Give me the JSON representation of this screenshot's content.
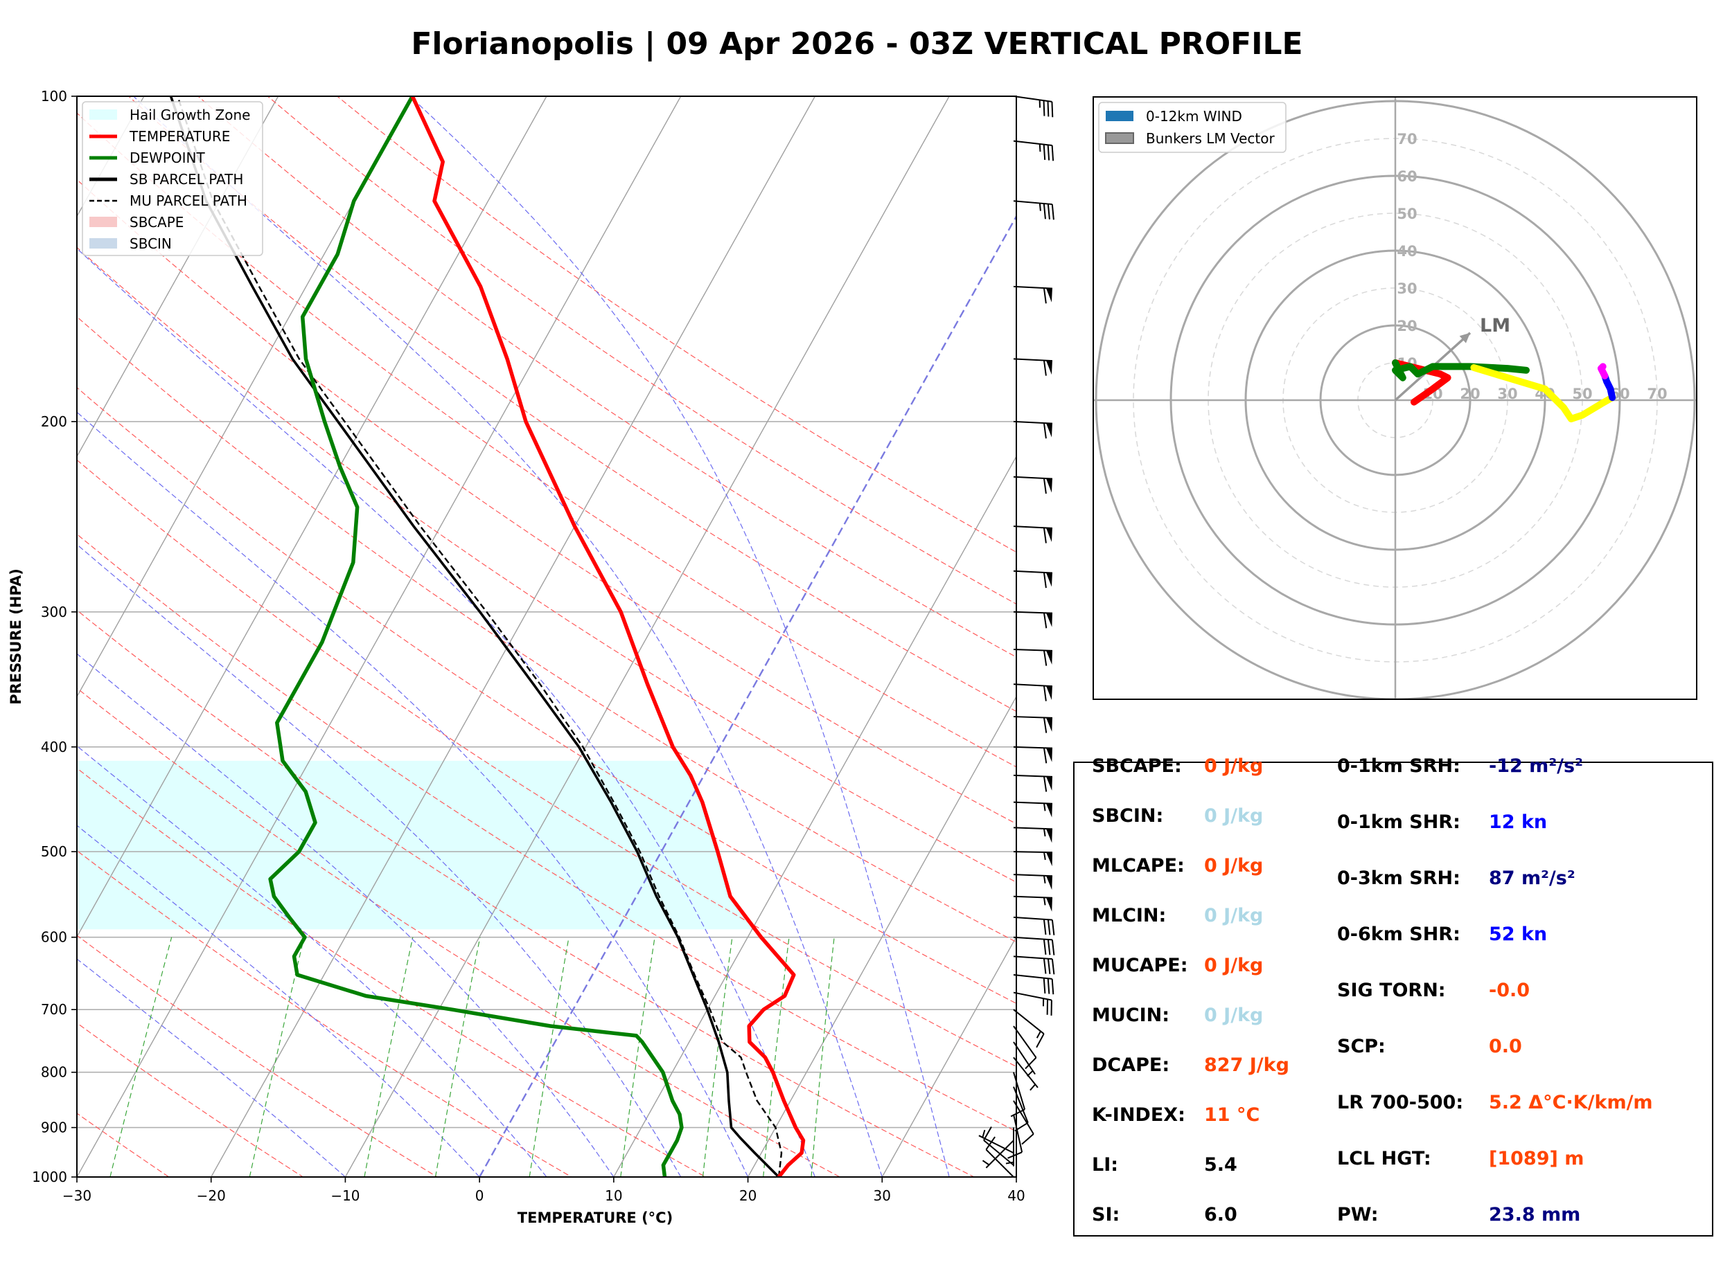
{
  "title": "Florianopolis | 09 Apr 2026 - 03Z VERTICAL PROFILE",
  "chart_data": [
    {
      "type": "skewt",
      "xlabel": "TEMPERATURE (°C)",
      "ylabel": "PRESSURE (HPA)",
      "xlim": [
        -30,
        40
      ],
      "ylim": [
        1000,
        100
      ],
      "skew_deg_per_decade": 45,
      "x_ticks": [
        "−30",
        "−20",
        "−10",
        "0",
        "10",
        "20",
        "30",
        "40"
      ],
      "y_ticks": [
        "100",
        "200",
        "300",
        "400",
        "500",
        "600",
        "700",
        "800",
        "900",
        "1000"
      ],
      "legend": {
        "position": "top-left",
        "items": [
          {
            "label": "Hail Growth Zone",
            "style": "patch",
            "color": "#e0ffff"
          },
          {
            "label": "TEMPERATURE",
            "style": "line",
            "color": "#ff0000"
          },
          {
            "label": "DEWPOINT",
            "style": "line",
            "color": "#008000"
          },
          {
            "label": "SB PARCEL PATH",
            "style": "line",
            "color": "#000000"
          },
          {
            "label": "MU PARCEL PATH",
            "style": "dashed",
            "color": "#000000"
          },
          {
            "label": "SBCAPE",
            "style": "patch",
            "color": "#f8c8c8"
          },
          {
            "label": "SBCIN",
            "style": "patch",
            "color": "#c9d9ea"
          }
        ]
      },
      "hail_growth_zone": {
        "p_top": 412,
        "p_bottom": 590
      },
      "temperature": [
        [
          1000,
          22.3
        ],
        [
          975,
          22.5
        ],
        [
          950,
          23
        ],
        [
          925,
          22.6
        ],
        [
          900,
          21.5
        ],
        [
          850,
          19.5
        ],
        [
          800,
          17.5
        ],
        [
          775,
          16.3
        ],
        [
          750,
          14.5
        ],
        [
          725,
          13.8
        ],
        [
          700,
          14.2
        ],
        [
          680,
          15.2
        ],
        [
          650,
          15
        ],
        [
          600,
          11
        ],
        [
          550,
          7
        ],
        [
          500,
          4.2
        ],
        [
          450,
          1
        ],
        [
          425,
          -1
        ],
        [
          400,
          -3.5
        ],
        [
          350,
          -8
        ],
        [
          300,
          -13
        ],
        [
          250,
          -20
        ],
        [
          200,
          -28
        ],
        [
          175,
          -32
        ],
        [
          150,
          -37
        ],
        [
          125,
          -44
        ],
        [
          115,
          -45
        ],
        [
          100,
          -50
        ]
      ],
      "dewpoint": [
        [
          1000,
          13.8
        ],
        [
          975,
          13.2
        ],
        [
          950,
          13.2
        ],
        [
          925,
          13.2
        ],
        [
          900,
          13
        ],
        [
          875,
          12.3
        ],
        [
          850,
          11.2
        ],
        [
          800,
          9.3
        ],
        [
          750,
          6.5
        ],
        [
          740,
          5.8
        ],
        [
          725,
          -1
        ],
        [
          700,
          -9
        ],
        [
          680,
          -16
        ],
        [
          650,
          -22
        ],
        [
          625,
          -23
        ],
        [
          600,
          -23
        ],
        [
          575,
          -25
        ],
        [
          550,
          -27
        ],
        [
          530,
          -28
        ],
        [
          500,
          -27
        ],
        [
          470,
          -27
        ],
        [
          440,
          -29
        ],
        [
          412,
          -32
        ],
        [
          380,
          -34
        ],
        [
          350,
          -34
        ],
        [
          320,
          -34
        ],
        [
          270,
          -35
        ],
        [
          240,
          -37
        ],
        [
          220,
          -40
        ],
        [
          200,
          -43
        ],
        [
          175,
          -47
        ],
        [
          160,
          -49
        ],
        [
          140,
          -49
        ],
        [
          125,
          -50
        ],
        [
          115,
          -50
        ],
        [
          100,
          -50
        ]
      ],
      "sb_parcel": [
        [
          1000,
          22.3
        ],
        [
          950,
          19.5
        ],
        [
          920,
          17.8
        ],
        [
          900,
          16.7
        ],
        [
          850,
          15.4
        ],
        [
          800,
          14.1
        ],
        [
          750,
          12.2
        ],
        [
          700,
          10
        ],
        [
          650,
          7.5
        ],
        [
          600,
          4.8
        ],
        [
          550,
          1.5
        ],
        [
          500,
          -1.8
        ],
        [
          450,
          -5.8
        ],
        [
          400,
          -10.5
        ],
        [
          350,
          -16.5
        ],
        [
          300,
          -23.5
        ],
        [
          250,
          -32
        ],
        [
          200,
          -42
        ],
        [
          175,
          -48
        ],
        [
          150,
          -54
        ],
        [
          125,
          -61
        ],
        [
          100,
          -68
        ]
      ],
      "mu_parcel": [
        [
          1000,
          22.3
        ],
        [
          950,
          21.5
        ],
        [
          900,
          20
        ],
        [
          850,
          17.5
        ],
        [
          800,
          15.5
        ],
        [
          775,
          14.5
        ],
        [
          750,
          12.5
        ],
        [
          700,
          10.2
        ],
        [
          650,
          7.6
        ],
        [
          600,
          4.9
        ],
        [
          550,
          1.7
        ],
        [
          500,
          -1.6
        ],
        [
          450,
          -5.6
        ],
        [
          400,
          -10.2
        ],
        [
          350,
          -16
        ],
        [
          300,
          -23
        ],
        [
          250,
          -31.5
        ],
        [
          200,
          -41.5
        ],
        [
          175,
          -47.5
        ],
        [
          150,
          -53.5
        ],
        [
          125,
          -60.5
        ],
        [
          100,
          -67.5
        ]
      ],
      "isotherms_deg": [
        -100,
        -90,
        -80,
        -70,
        -60,
        -50,
        -40,
        -30,
        -20,
        -10,
        0,
        10,
        20,
        30,
        40
      ],
      "highlighted_isotherm_deg": 0,
      "dry_adiabats_theta_k": [
        250,
        260,
        270,
        280,
        290,
        300,
        310,
        320,
        330,
        340,
        350,
        360,
        370,
        380,
        390,
        400,
        410,
        420
      ],
      "moist_adiabats_start_c": [
        -10,
        0,
        5,
        10,
        15,
        20,
        25,
        30,
        35
      ],
      "mixing_ratio_lines_gkg": [
        0.4,
        1,
        2,
        3,
        5,
        8,
        12,
        16,
        20
      ],
      "wind_barbs": [
        {
          "p": 1000,
          "u": 8,
          "v": -8
        },
        {
          "p": 975,
          "u": 6,
          "v": -5
        },
        {
          "p": 950,
          "u": 4,
          "v": -2
        },
        {
          "p": 925,
          "u": 2,
          "v": 2
        },
        {
          "p": 900,
          "u": 0,
          "v": 6
        },
        {
          "p": 875,
          "u": -2,
          "v": 9
        },
        {
          "p": 850,
          "u": -6,
          "v": 10
        },
        {
          "p": 825,
          "u": -4,
          "v": 10
        },
        {
          "p": 800,
          "u": -3,
          "v": 10
        },
        {
          "p": 775,
          "u": -4,
          "v": 5
        },
        {
          "p": 750,
          "u": -4,
          "v": 6
        },
        {
          "p": 725,
          "u": -5,
          "v": 7
        },
        {
          "p": 700,
          "u": -10,
          "v": 8
        },
        {
          "p": 675,
          "u": -25,
          "v": 5
        },
        {
          "p": 650,
          "u": -28,
          "v": 3
        },
        {
          "p": 625,
          "u": -30,
          "v": 2
        },
        {
          "p": 600,
          "u": -30,
          "v": 2
        },
        {
          "p": 575,
          "u": -30,
          "v": 2
        },
        {
          "p": 550,
          "u": -55,
          "v": 2
        },
        {
          "p": 525,
          "u": -55,
          "v": 2
        },
        {
          "p": 500,
          "u": -56,
          "v": 1
        },
        {
          "p": 475,
          "u": -55,
          "v": 2
        },
        {
          "p": 450,
          "u": -55,
          "v": 2
        },
        {
          "p": 425,
          "u": -58,
          "v": 2
        },
        {
          "p": 400,
          "u": -60,
          "v": 2
        },
        {
          "p": 375,
          "u": -60,
          "v": 2
        },
        {
          "p": 350,
          "u": -60,
          "v": 3
        },
        {
          "p": 325,
          "u": -62,
          "v": 2
        },
        {
          "p": 300,
          "u": -62,
          "v": 2
        },
        {
          "p": 275,
          "u": -62,
          "v": 3
        },
        {
          "p": 250,
          "u": -62,
          "v": 3
        },
        {
          "p": 225,
          "u": -62,
          "v": 3
        },
        {
          "p": 200,
          "u": -62,
          "v": 3
        },
        {
          "p": 175,
          "u": -62,
          "v": 3
        },
        {
          "p": 150,
          "u": -60,
          "v": 3
        },
        {
          "p": 125,
          "u": -35,
          "v": 3
        },
        {
          "p": 110,
          "u": -35,
          "v": 4
        },
        {
          "p": 100,
          "u": -35,
          "v": 5
        }
      ]
    },
    {
      "type": "hodograph",
      "legend": {
        "position": "top-left",
        "items": [
          {
            "label": "0-12km WIND",
            "style": "patch",
            "color": "#1f77b4"
          },
          {
            "label": "Bunkers LM Vector",
            "style": "patch",
            "color": "#999999"
          }
        ]
      },
      "ring_labels": [
        "10",
        "20",
        "30",
        "40",
        "50",
        "60",
        "70"
      ],
      "ring_step_kn": 10,
      "major_ring_step_kn": 20,
      "max_range_kn": 80,
      "lm_label": "LM",
      "lm_vector": {
        "u": 20,
        "v": 18
      },
      "segments": [
        {
          "color": "#ff0000",
          "points": [
            [
              5,
              -0.5
            ],
            [
              10,
              3
            ],
            [
              14,
              6
            ],
            [
              12,
              7
            ],
            [
              6,
              8.5
            ],
            [
              0,
              10
            ]
          ]
        },
        {
          "color": "#008000",
          "points": [
            [
              0,
              10
            ],
            [
              2,
              6
            ],
            [
              0,
              8
            ],
            [
              4,
              9
            ],
            [
              6,
              7
            ],
            [
              10,
              9
            ],
            [
              20,
              9
            ],
            [
              30,
              8.5
            ],
            [
              35,
              8
            ]
          ]
        },
        {
          "color": "#ffff00",
          "points": [
            [
              21,
              8.7
            ],
            [
              30,
              6
            ],
            [
              40,
              3
            ],
            [
              45,
              -2
            ],
            [
              47,
              -5
            ],
            [
              50,
              -4
            ],
            [
              55,
              -1
            ],
            [
              58,
              0.7
            ]
          ]
        },
        {
          "color": "#0000ff",
          "points": [
            [
              58,
              0.7
            ],
            [
              57.5,
              3
            ],
            [
              56.5,
              5
            ],
            [
              56,
              6.5
            ]
          ]
        },
        {
          "color": "#ff00ff",
          "points": [
            [
              56,
              6.5
            ],
            [
              55.5,
              7.5
            ],
            [
              55,
              8.5
            ],
            [
              55.5,
              9
            ]
          ]
        }
      ]
    }
  ],
  "stats": {
    "left_col": [
      {
        "label": "SBCAPE:",
        "value": "0 J/kg",
        "color": "#ff4500"
      },
      {
        "label": "SBCIN:",
        "value": "0 J/kg",
        "color": "#add8e6"
      },
      {
        "label": "MLCAPE:",
        "value": "0 J/kg",
        "color": "#ff4500"
      },
      {
        "label": "MLCIN:",
        "value": "0 J/kg",
        "color": "#add8e6"
      },
      {
        "label": "MUCAPE:",
        "value": "0 J/kg",
        "color": "#ff4500"
      },
      {
        "label": "MUCIN:",
        "value": "0 J/kg",
        "color": "#add8e6"
      },
      {
        "label": "DCAPE:",
        "value": "827 J/kg",
        "color": "#ff4500"
      },
      {
        "label": "K-INDEX:",
        "value": "11 °C",
        "color": "#ff4500"
      },
      {
        "label": "LI:",
        "value": "5.4",
        "color": "#000000"
      },
      {
        "label": "SI:",
        "value": "6.0",
        "color": "#000000"
      }
    ],
    "right_col": [
      {
        "label": "0-1km SRH:",
        "value": "-12 m²/s²",
        "color": "#000080"
      },
      {
        "label": "0-1km SHR:",
        "value": "12 kn",
        "color": "#0000ff"
      },
      {
        "label": "0-3km SRH:",
        "value": "87 m²/s²",
        "color": "#000080"
      },
      {
        "label": "0-6km SHR:",
        "value": "52 kn",
        "color": "#0000ff"
      },
      {
        "label": "SIG TORN:",
        "value": "-0.0",
        "color": "#ff4500"
      },
      {
        "label": "SCP:",
        "value": "0.0",
        "color": "#ff4500"
      },
      {
        "label": "LR 700-500:",
        "value": "5.2 Δ°C·K/km/m",
        "color": "#ff4500"
      },
      {
        "label": "LCL HGT:",
        "value": "[1089] m",
        "color": "#ff4500"
      },
      {
        "label": "PW:",
        "value": "23.8 mm",
        "color": "#000080"
      }
    ]
  }
}
